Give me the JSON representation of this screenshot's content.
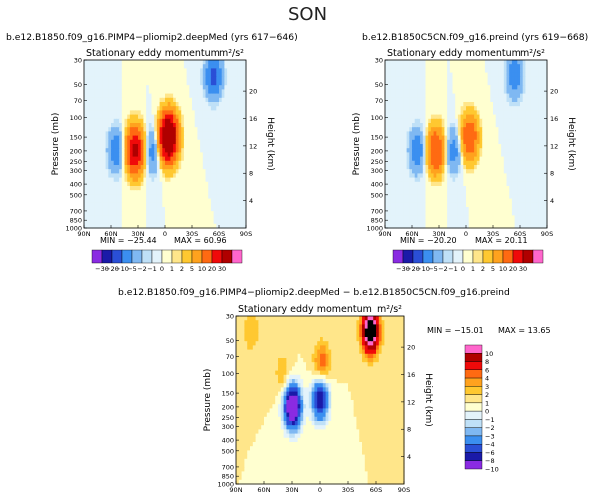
{
  "title": "SON",
  "colors": {
    "levels": [
      -30,
      -20,
      -10,
      -5,
      -2,
      -1,
      0,
      1,
      2,
      5,
      10,
      20,
      30
    ],
    "palette": [
      "#8a2be2",
      "#1a1aa8",
      "#2a4fd6",
      "#3b8ff0",
      "#7fb8f2",
      "#bfe0f7",
      "#e3f3fb",
      "#ffffd0",
      "#ffe68a",
      "#ffc830",
      "#ffa21e",
      "#ff6a12",
      "#f00a0a",
      "#b00000",
      "#ff66cc"
    ]
  },
  "chart_data": [
    {
      "type": "heatmap",
      "case_title": "b.e12.B1850.f09_g16.PIMP4−pliomip2.deepMed",
      "years": "(yrs 617−646)",
      "variable_label": "Stationary eddy momentum",
      "units": "m²/s²",
      "xlabel": "",
      "ylabel": "Pressure (mb)",
      "y2label": "Height (km)",
      "x_ticks": [
        "90N",
        "60N",
        "30N",
        "0",
        "30S",
        "60S",
        "90S"
      ],
      "y_ticks": [
        "30",
        "50",
        "70",
        "100",
        "150",
        "200",
        "250",
        "300",
        "400",
        "500",
        "700",
        "850",
        "1000"
      ],
      "y2_ticks": [
        "4",
        "8",
        "12",
        "16",
        "20"
      ],
      "min_label": "MIN = −25.44",
      "max_label": "MAX = 60.96",
      "min": -25.44,
      "max": 60.96,
      "contour_levels": [
        -30,
        -20,
        -10,
        -5,
        -2,
        -1,
        0,
        1,
        2,
        5,
        10,
        20,
        30
      ],
      "features": [
        {
          "lat": 34,
          "pressure_mb": 200,
          "value": 35,
          "sign": "positive core"
        },
        {
          "lat": -4,
          "pressure_mb": 150,
          "value": 61,
          "sign": "positive core"
        },
        {
          "lat": 55,
          "pressure_mb": 200,
          "value": -8,
          "sign": "negative"
        },
        {
          "lat": 14,
          "pressure_mb": 200,
          "value": -7,
          "sign": "negative"
        },
        {
          "lat": -55,
          "pressure_mb": 40,
          "value": -12,
          "sign": "negative"
        }
      ]
    },
    {
      "type": "heatmap",
      "case_title": "b.e12.B1850C5CN.f09_g16.preind",
      "years": "(yrs 619−668)",
      "variable_label": "Stationary eddy momentum",
      "units": "m²/s²",
      "xlabel": "",
      "ylabel": "Pressure (mb)",
      "y2label": "Height (km)",
      "x_ticks": [
        "90N",
        "60N",
        "30N",
        "0",
        "30S",
        "60S",
        "90S"
      ],
      "y_ticks": [
        "30",
        "50",
        "70",
        "100",
        "150",
        "200",
        "250",
        "300",
        "400",
        "500",
        "700",
        "850",
        "1000"
      ],
      "y2_ticks": [
        "4",
        "8",
        "12",
        "16",
        "20"
      ],
      "min_label": "MIN = −20.20",
      "max_label": "MAX = 20.11",
      "min": -20.2,
      "max": 20.11,
      "contour_levels": [
        -30,
        -20,
        -10,
        -5,
        -2,
        -1,
        0,
        1,
        2,
        5,
        10,
        20,
        30
      ],
      "features": [
        {
          "lat": 34,
          "pressure_mb": 200,
          "value": 20,
          "sign": "positive core"
        },
        {
          "lat": -4,
          "pressure_mb": 150,
          "value": 18,
          "sign": "positive core"
        },
        {
          "lat": 55,
          "pressure_mb": 200,
          "value": -8,
          "sign": "negative"
        },
        {
          "lat": 14,
          "pressure_mb": 200,
          "value": -7,
          "sign": "negative"
        },
        {
          "lat": -55,
          "pressure_mb": 40,
          "value": -8,
          "sign": "negative"
        }
      ]
    },
    {
      "type": "heatmap",
      "case_title": "b.e12.B1850.f09_g16.PIMP4−pliomip2.deepMed − b.e12.B1850C5CN.f09_g16.preind",
      "variable_label": "Stationary eddy momentum",
      "units": "m²/s²",
      "xlabel": "",
      "ylabel": "Pressure (mb)",
      "y2label": "Height (km)",
      "x_ticks": [
        "90N",
        "60N",
        "30N",
        "0",
        "30S",
        "60S",
        "90S"
      ],
      "y_ticks": [
        "30",
        "50",
        "70",
        "100",
        "150",
        "200",
        "250",
        "300",
        "400",
        "500",
        "700",
        "850",
        "1000"
      ],
      "y2_ticks": [
        "4",
        "8",
        "12",
        "16",
        "20"
      ],
      "min_label": "MIN = −15.01",
      "max_label": "MAX = 13.65",
      "min": -15.01,
      "max": 13.65,
      "contour_levels": [
        -10,
        -8,
        -6,
        -4,
        -3,
        -2,
        -1,
        0,
        1,
        2,
        3,
        4,
        6,
        8,
        10
      ],
      "features": [
        {
          "lat": -55,
          "pressure_mb": 40,
          "value": 13.65,
          "sign": "positive core"
        },
        {
          "lat": 75,
          "pressure_mb": 40,
          "value": 2,
          "sign": "positive"
        },
        {
          "lat": 40,
          "pressure_mb": 100,
          "value": 2,
          "sign": "positive"
        },
        {
          "lat": 30,
          "pressure_mb": 200,
          "value": -15,
          "sign": "negative core"
        },
        {
          "lat": 0,
          "pressure_mb": 170,
          "value": -10,
          "sign": "negative"
        },
        {
          "lat": -2,
          "pressure_mb": 80,
          "value": 4,
          "sign": "positive"
        }
      ]
    }
  ],
  "colorbars": {
    "top_labels": [
      "−30",
      "−20",
      "−10",
      "−5",
      "−2",
      "−1",
      "0",
      "1",
      "2",
      "5",
      "10",
      "20",
      "30"
    ],
    "diff_labels": [
      "10",
      "8",
      "6",
      "4",
      "3",
      "2",
      "1",
      "0",
      "−1",
      "−2",
      "−3",
      "−4",
      "−6",
      "−8",
      "−10"
    ],
    "diff_palette": [
      "#ff66cc",
      "#b00000",
      "#f00a0a",
      "#ff6a12",
      "#ffa21e",
      "#ffc830",
      "#ffe68a",
      "#ffffd0",
      "#e3f3fb",
      "#bfe0f7",
      "#7fb8f2",
      "#3b8ff0",
      "#2a4fd6",
      "#1a1aa8",
      "#8a2be2"
    ]
  }
}
